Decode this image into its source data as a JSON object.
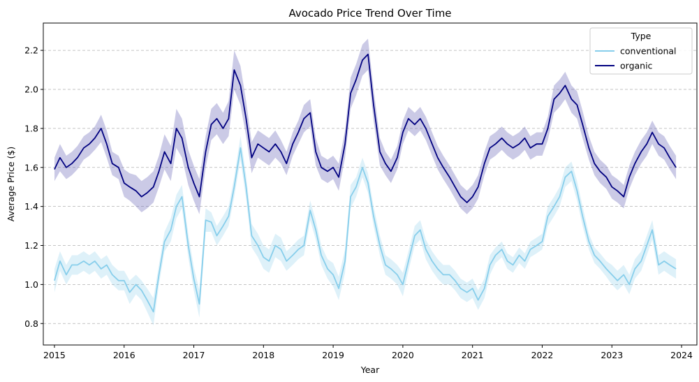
{
  "chart_data": {
    "type": "line",
    "title": "Avocado Price Trend Over Time",
    "xlabel": "Year",
    "ylabel": "Average Price ($)",
    "xlim": [
      2014.84,
      2024.22
    ],
    "ylim": [
      0.69,
      2.34
    ],
    "x_ticks": [
      2015,
      2016,
      2017,
      2018,
      2019,
      2020,
      2021,
      2022,
      2023,
      2024
    ],
    "y_ticks": [
      0.8,
      1.0,
      1.2,
      1.4,
      1.6,
      1.8,
      2.0,
      2.2
    ],
    "y_tick_labels": [
      "0.8",
      "1.0",
      "1.2",
      "1.4",
      "1.6",
      "1.8",
      "2.0",
      "2.2"
    ],
    "grid": "horizontal dashed",
    "legend": {
      "title": "Type",
      "placement": "top-right"
    },
    "series": [
      {
        "name": "conventional",
        "color": "#87ceeb",
        "band_color": "#87ceeb",
        "x": [
          2015.0,
          2015.08,
          2015.17,
          2015.25,
          2015.33,
          2015.42,
          2015.5,
          2015.58,
          2015.67,
          2015.75,
          2015.83,
          2015.92,
          2016.0,
          2016.08,
          2016.17,
          2016.25,
          2016.33,
          2016.42,
          2016.5,
          2016.58,
          2016.67,
          2016.75,
          2016.83,
          2016.92,
          2017.0,
          2017.08,
          2017.17,
          2017.25,
          2017.33,
          2017.42,
          2017.5,
          2017.58,
          2017.67,
          2017.75,
          2017.83,
          2017.92,
          2018.0,
          2018.08,
          2018.17,
          2018.25,
          2018.33,
          2018.42,
          2018.5,
          2018.58,
          2018.67,
          2018.75,
          2018.83,
          2018.92,
          2019.0,
          2019.08,
          2019.17,
          2019.25,
          2019.33,
          2019.42,
          2019.5,
          2019.58,
          2019.67,
          2019.75,
          2019.83,
          2019.92,
          2020.0,
          2020.08,
          2020.17,
          2020.25,
          2020.33,
          2020.42,
          2020.5,
          2020.58,
          2020.67,
          2020.75,
          2020.83,
          2020.92,
          2021.0,
          2021.08,
          2021.17,
          2021.25,
          2021.33,
          2021.42,
          2021.5,
          2021.58,
          2021.67,
          2021.75,
          2021.83,
          2021.92,
          2022.0,
          2022.08,
          2022.17,
          2022.25,
          2022.33,
          2022.42,
          2022.5,
          2022.58,
          2022.67,
          2022.75,
          2022.83,
          2022.92,
          2023.0,
          2023.08,
          2023.17,
          2023.25,
          2023.33,
          2023.42,
          2023.5,
          2023.58,
          2023.67,
          2023.75,
          2023.83,
          2023.92
        ],
        "values": [
          1.02,
          1.12,
          1.05,
          1.1,
          1.1,
          1.12,
          1.1,
          1.12,
          1.08,
          1.1,
          1.05,
          1.02,
          1.02,
          0.96,
          1.0,
          0.97,
          0.92,
          0.86,
          1.05,
          1.22,
          1.28,
          1.4,
          1.45,
          1.2,
          1.03,
          0.9,
          1.33,
          1.32,
          1.25,
          1.3,
          1.35,
          1.5,
          1.7,
          1.5,
          1.25,
          1.2,
          1.14,
          1.12,
          1.2,
          1.18,
          1.12,
          1.15,
          1.18,
          1.2,
          1.38,
          1.28,
          1.15,
          1.08,
          1.05,
          0.98,
          1.12,
          1.45,
          1.5,
          1.6,
          1.52,
          1.35,
          1.2,
          1.1,
          1.08,
          1.05,
          1.0,
          1.12,
          1.25,
          1.28,
          1.18,
          1.12,
          1.08,
          1.05,
          1.05,
          1.02,
          0.98,
          0.96,
          0.98,
          0.92,
          0.98,
          1.1,
          1.15,
          1.18,
          1.12,
          1.1,
          1.15,
          1.12,
          1.18,
          1.2,
          1.22,
          1.35,
          1.4,
          1.45,
          1.55,
          1.58,
          1.48,
          1.35,
          1.22,
          1.15,
          1.12,
          1.08,
          1.05,
          1.02,
          1.05,
          1.0,
          1.08,
          1.12,
          1.2,
          1.28,
          1.1,
          1.12,
          1.1,
          1.08
        ],
        "band": [
          0.06,
          0.05,
          0.05,
          0.05,
          0.05,
          0.05,
          0.05,
          0.05,
          0.05,
          0.05,
          0.05,
          0.05,
          0.05,
          0.06,
          0.05,
          0.05,
          0.06,
          0.07,
          0.05,
          0.05,
          0.06,
          0.06,
          0.06,
          0.06,
          0.06,
          0.07,
          0.06,
          0.05,
          0.05,
          0.05,
          0.05,
          0.05,
          0.06,
          0.06,
          0.06,
          0.06,
          0.06,
          0.06,
          0.06,
          0.06,
          0.05,
          0.05,
          0.05,
          0.05,
          0.05,
          0.05,
          0.05,
          0.05,
          0.06,
          0.06,
          0.06,
          0.06,
          0.05,
          0.05,
          0.05,
          0.05,
          0.05,
          0.05,
          0.05,
          0.05,
          0.06,
          0.05,
          0.05,
          0.05,
          0.05,
          0.05,
          0.05,
          0.05,
          0.05,
          0.05,
          0.05,
          0.05,
          0.05,
          0.05,
          0.05,
          0.05,
          0.04,
          0.04,
          0.04,
          0.04,
          0.04,
          0.04,
          0.04,
          0.04,
          0.04,
          0.05,
          0.05,
          0.05,
          0.05,
          0.05,
          0.05,
          0.05,
          0.04,
          0.04,
          0.04,
          0.04,
          0.05,
          0.05,
          0.05,
          0.05,
          0.05,
          0.05,
          0.05,
          0.05,
          0.05,
          0.05,
          0.05,
          0.05
        ]
      },
      {
        "name": "organic",
        "color": "#000080",
        "band_color": "#6a67b8",
        "x": [
          2015.0,
          2015.08,
          2015.17,
          2015.25,
          2015.33,
          2015.42,
          2015.5,
          2015.58,
          2015.67,
          2015.75,
          2015.83,
          2015.92,
          2016.0,
          2016.08,
          2016.17,
          2016.25,
          2016.33,
          2016.42,
          2016.5,
          2016.58,
          2016.67,
          2016.75,
          2016.83,
          2016.92,
          2017.0,
          2017.08,
          2017.17,
          2017.25,
          2017.33,
          2017.42,
          2017.5,
          2017.58,
          2017.67,
          2017.75,
          2017.83,
          2017.92,
          2018.0,
          2018.08,
          2018.17,
          2018.25,
          2018.33,
          2018.42,
          2018.5,
          2018.58,
          2018.67,
          2018.75,
          2018.83,
          2018.92,
          2019.0,
          2019.08,
          2019.17,
          2019.25,
          2019.33,
          2019.42,
          2019.5,
          2019.58,
          2019.67,
          2019.75,
          2019.83,
          2019.92,
          2020.0,
          2020.08,
          2020.17,
          2020.25,
          2020.33,
          2020.42,
          2020.5,
          2020.58,
          2020.67,
          2020.75,
          2020.83,
          2020.92,
          2021.0,
          2021.08,
          2021.17,
          2021.25,
          2021.33,
          2021.42,
          2021.5,
          2021.58,
          2021.67,
          2021.75,
          2021.83,
          2021.92,
          2022.0,
          2022.08,
          2022.17,
          2022.25,
          2022.33,
          2022.42,
          2022.5,
          2022.58,
          2022.67,
          2022.75,
          2022.83,
          2022.92,
          2023.0,
          2023.08,
          2023.17,
          2023.25,
          2023.33,
          2023.42,
          2023.5,
          2023.58,
          2023.67,
          2023.75,
          2023.83,
          2023.92
        ],
        "values": [
          1.59,
          1.65,
          1.6,
          1.62,
          1.65,
          1.7,
          1.72,
          1.75,
          1.8,
          1.72,
          1.62,
          1.6,
          1.52,
          1.5,
          1.48,
          1.45,
          1.47,
          1.5,
          1.58,
          1.68,
          1.62,
          1.8,
          1.75,
          1.6,
          1.52,
          1.45,
          1.68,
          1.82,
          1.85,
          1.8,
          1.85,
          2.1,
          2.02,
          1.85,
          1.65,
          1.72,
          1.7,
          1.68,
          1.72,
          1.68,
          1.62,
          1.72,
          1.78,
          1.85,
          1.88,
          1.68,
          1.6,
          1.58,
          1.6,
          1.55,
          1.72,
          1.98,
          2.05,
          2.15,
          2.18,
          1.92,
          1.68,
          1.62,
          1.58,
          1.65,
          1.78,
          1.85,
          1.82,
          1.85,
          1.8,
          1.72,
          1.65,
          1.6,
          1.55,
          1.5,
          1.45,
          1.42,
          1.45,
          1.5,
          1.62,
          1.7,
          1.72,
          1.75,
          1.72,
          1.7,
          1.72,
          1.75,
          1.7,
          1.72,
          1.72,
          1.8,
          1.95,
          1.98,
          2.02,
          1.95,
          1.92,
          1.82,
          1.7,
          1.62,
          1.58,
          1.55,
          1.5,
          1.48,
          1.45,
          1.55,
          1.62,
          1.68,
          1.72,
          1.78,
          1.72,
          1.7,
          1.65,
          1.6
        ],
        "band": [
          0.06,
          0.07,
          0.06,
          0.06,
          0.06,
          0.06,
          0.06,
          0.06,
          0.07,
          0.07,
          0.06,
          0.06,
          0.07,
          0.07,
          0.08,
          0.08,
          0.08,
          0.08,
          0.08,
          0.09,
          0.09,
          0.1,
          0.1,
          0.09,
          0.09,
          0.09,
          0.08,
          0.08,
          0.08,
          0.08,
          0.09,
          0.1,
          0.1,
          0.09,
          0.08,
          0.07,
          0.07,
          0.07,
          0.07,
          0.06,
          0.06,
          0.06,
          0.06,
          0.07,
          0.07,
          0.07,
          0.06,
          0.06,
          0.06,
          0.07,
          0.07,
          0.08,
          0.08,
          0.08,
          0.08,
          0.08,
          0.07,
          0.06,
          0.06,
          0.06,
          0.06,
          0.06,
          0.06,
          0.06,
          0.06,
          0.06,
          0.06,
          0.06,
          0.06,
          0.06,
          0.06,
          0.06,
          0.06,
          0.06,
          0.06,
          0.06,
          0.06,
          0.06,
          0.06,
          0.06,
          0.06,
          0.06,
          0.06,
          0.06,
          0.06,
          0.06,
          0.07,
          0.07,
          0.07,
          0.07,
          0.07,
          0.07,
          0.06,
          0.06,
          0.06,
          0.06,
          0.06,
          0.06,
          0.06,
          0.06,
          0.06,
          0.06,
          0.06,
          0.06,
          0.06,
          0.06,
          0.06,
          0.06
        ]
      }
    ]
  }
}
